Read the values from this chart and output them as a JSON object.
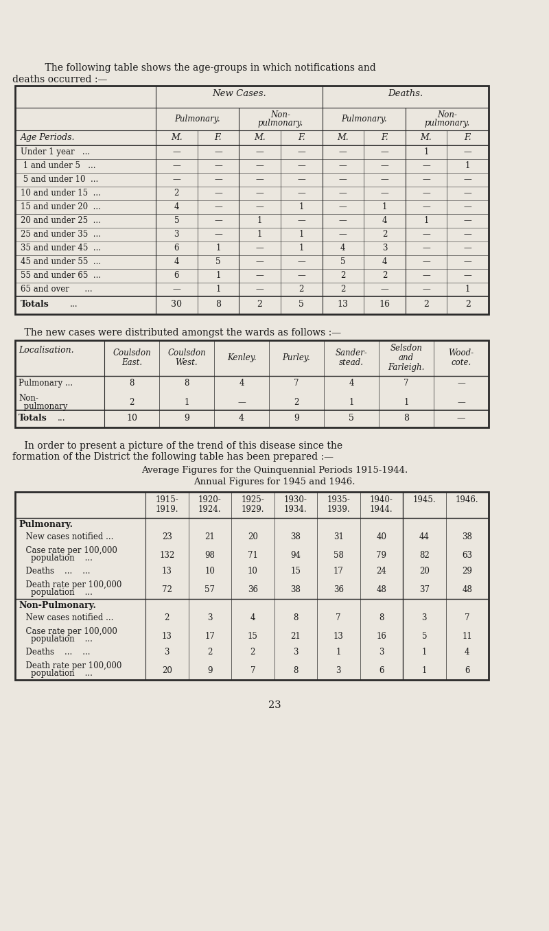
{
  "bg_color": "#ebe7df",
  "text_color": "#1a1a1a",
  "page_intro1": "    The following table shows the age-groups in which notifications and",
  "page_intro2": "deaths occurred :—",
  "table1_col0_label": "Age Periods.",
  "table1_header3": [
    "M.",
    "F.",
    "M.",
    "F.",
    "M.",
    "F.",
    "M.",
    "F."
  ],
  "table1_rows": [
    [
      "Under 1 year   ...",
      "—",
      "—",
      "—",
      "—",
      "—",
      "—",
      "1",
      "—"
    ],
    [
      " 1 and under 5   ...",
      "—",
      "—",
      "—",
      "—",
      "—",
      "—",
      "—",
      "1"
    ],
    [
      " 5 and under 10  ...",
      "—",
      "—",
      "—",
      "—",
      "—",
      "—",
      "—",
      "—"
    ],
    [
      "10 and under 15  ...",
      "2",
      "—",
      "—",
      "—",
      "—",
      "—",
      "—",
      "—"
    ],
    [
      "15 and under 20  ...",
      "4",
      "—",
      "—",
      "1",
      "—",
      "1",
      "—",
      "—"
    ],
    [
      "20 and under 25  ...",
      "5",
      "—",
      "1",
      "—",
      "—",
      "4",
      "1",
      "—"
    ],
    [
      "25 and under 35  ...",
      "3",
      "—",
      "1",
      "1",
      "—",
      "2",
      "—",
      "—"
    ],
    [
      "35 and under 45  ...",
      "6",
      "1",
      "—",
      "1",
      "4",
      "3",
      "—",
      "—"
    ],
    [
      "45 and under 55  ...",
      "4",
      "5",
      "—",
      "—",
      "5",
      "4",
      "—",
      "—"
    ],
    [
      "55 and under 65  ...",
      "6",
      "1",
      "—",
      "—",
      "2",
      "2",
      "—",
      "—"
    ],
    [
      "65 and over      ...",
      "—",
      "1",
      "—",
      "2",
      "2",
      "—",
      "—",
      "1"
    ]
  ],
  "table1_totals": [
    "Totals     ...",
    "30",
    "8",
    "2",
    "5",
    "13",
    "16",
    "2",
    "2"
  ],
  "intro2_line1": "    The new cases were distributed amongst the wards as follows :—",
  "table2_col0_label": "Localisation.",
  "table2_headers": [
    "Coulsdon\nEast.",
    "Coulsdon\nWest.",
    "Kenley.",
    "Purley.",
    "Sander-\nstead.",
    "Selsdon\nand\nFarleigh.",
    "Wood-\ncote."
  ],
  "table2_row1_label": "Pulmonary ...",
  "table2_row1_vals": [
    "8",
    "8",
    "4",
    "7",
    "4",
    "7",
    "—"
  ],
  "table2_row2_label1": "Non-",
  "table2_row2_label2": "  pulmonary",
  "table2_row2_vals": [
    "2",
    "1",
    "—",
    "2",
    "1",
    "1",
    "—"
  ],
  "table2_totals": [
    "Totals   ...",
    "10",
    "9",
    "4",
    "9",
    "5",
    "8",
    "—"
  ],
  "intro3_line1": "    In order to present a picture of the trend of this disease since the",
  "intro3_line2": "formation of the District the following table has been prepared :—",
  "table3_title1": "Average Figures for the Quinquennial Periods 1915-1944.",
  "table3_title2": "Annual Figures for 1945 and 1946.",
  "table3_col_headers": [
    "1915-\n1919.",
    "1920-\n1924.",
    "1925-\n1929.",
    "1930-\n1934.",
    "1935-\n1939.",
    "1940-\n1944.",
    "1945.",
    "1946."
  ],
  "table3_section1_label": "Pulmonary.",
  "table3_s1r1": [
    "New cases notified ...",
    "23",
    "21",
    "20",
    "38",
    "31",
    "40",
    "44",
    "38"
  ],
  "table3_s1r2a": "Case rate per 100,000",
  "table3_s1r2b": "    population    ...",
  "table3_s1r2v": [
    "132",
    "98",
    "71",
    "94",
    "58",
    "79",
    "82",
    "63"
  ],
  "table3_s1r3": [
    "Deaths    ...    ...",
    "13",
    "10",
    "10",
    "15",
    "17",
    "24",
    "20",
    "29"
  ],
  "table3_s1r4a": "Death rate per 100,000",
  "table3_s1r4b": "    population    ...",
  "table3_s1r4v": [
    "72",
    "57",
    "36",
    "38",
    "36",
    "48",
    "37",
    "48"
  ],
  "table3_section2_label": "Non-Pulmonary.",
  "table3_s2r1": [
    "New cases notified ...",
    "2",
    "3",
    "4",
    "8",
    "7",
    "8",
    "3",
    "7"
  ],
  "table3_s2r2a": "Case rate per 100,000",
  "table3_s2r2b": "    population    ...",
  "table3_s2r2v": [
    "13",
    "17",
    "15",
    "21",
    "13",
    "16",
    "5",
    "11"
  ],
  "table3_s2r3": [
    "Deaths    ...    ...",
    "3",
    "2",
    "2",
    "3",
    "1",
    "3",
    "1",
    "4"
  ],
  "table3_s2r4a": "Death rate per 100,000",
  "table3_s2r4b": "    population    ...",
  "table3_s2r4v": [
    "20",
    "9",
    "7",
    "8",
    "3",
    "6",
    "1",
    "6"
  ],
  "page_number": "23"
}
